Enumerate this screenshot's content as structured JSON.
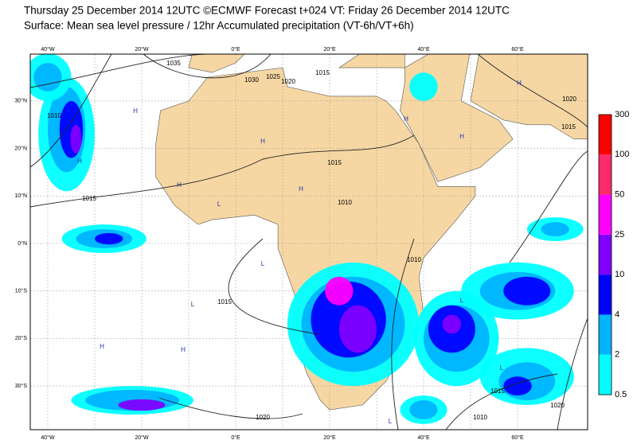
{
  "header": {
    "title": "Thursday 25 December 2014 12UTC ©ECMWF Forecast t+024 VT: Friday 26 December 2014 12UTC",
    "subtitle": "Surface: Mean sea level pressure / 12hr Accumulated precipitation (VT-6h/VT+6h)"
  },
  "map": {
    "lon_ticks": [
      {
        "value": -40,
        "label": "40°W"
      },
      {
        "value": -20,
        "label": "20°W"
      },
      {
        "value": 0,
        "label": "0°E"
      },
      {
        "value": 20,
        "label": "20°E"
      },
      {
        "value": 40,
        "label": "40°E"
      },
      {
        "value": 60,
        "label": "60°E"
      }
    ],
    "lat_ticks": [
      {
        "value": 30,
        "label": "30°N"
      },
      {
        "value": 20,
        "label": "20°N"
      },
      {
        "value": 10,
        "label": "10°N"
      },
      {
        "value": 0,
        "label": "0°N"
      },
      {
        "value": -10,
        "label": "10°S"
      },
      {
        "value": -20,
        "label": "20°S"
      },
      {
        "value": -30,
        "label": "30°S"
      }
    ],
    "isobar_labels": [
      "1035",
      "1030",
      "1025",
      "1020",
      "1015",
      "1010",
      "1015",
      "1010",
      "1015",
      "1010",
      "1015",
      "1015",
      "1020",
      "1015",
      "1010",
      "1020",
      "1020"
    ],
    "pressure_centers": [
      "H",
      "H",
      "H",
      "H",
      "H",
      "H",
      "H",
      "H",
      "H",
      "H",
      "L",
      "L",
      "L",
      "L",
      "L",
      "L"
    ]
  },
  "legend": {
    "levels": [
      0.5,
      2,
      4,
      10,
      25,
      50,
      100,
      300
    ],
    "colors": [
      "#00ffff",
      "#00b4ff",
      "#0000ff",
      "#8000ff",
      "#ff00ff",
      "#ff2a6a",
      "#ff0000"
    ]
  }
}
